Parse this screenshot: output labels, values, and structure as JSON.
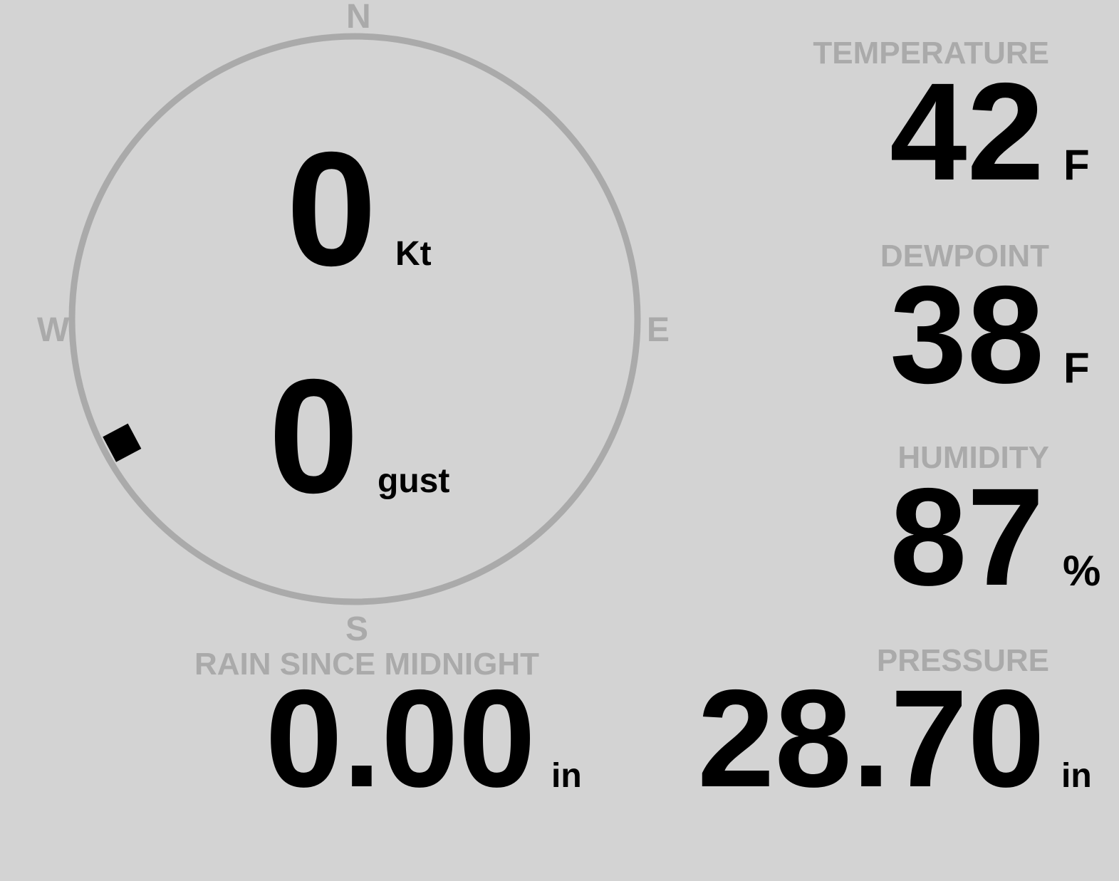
{
  "colors": {
    "background": "#d3d3d3",
    "label": "#aaaaaa",
    "value": "#000000",
    "ring": "#aaaaaa"
  },
  "compass": {
    "north": "N",
    "east": "E",
    "south": "S",
    "west": "W",
    "wind_direction_deg": 242,
    "wind_speed": "0",
    "wind_speed_unit": "Kt",
    "gust_speed": "0",
    "gust_unit": "gust"
  },
  "temperature": {
    "label": "TEMPERATURE",
    "value": "42",
    "unit": "F"
  },
  "dewpoint": {
    "label": "DEWPOINT",
    "value": "38",
    "unit": "F"
  },
  "humidity": {
    "label": "HUMIDITY",
    "value": "87",
    "unit": "%"
  },
  "rain": {
    "label": "RAIN SINCE MIDNIGHT",
    "value": "0.00",
    "unit": "in"
  },
  "pressure": {
    "label": "PRESSURE",
    "value": "28.70",
    "unit": "in"
  }
}
